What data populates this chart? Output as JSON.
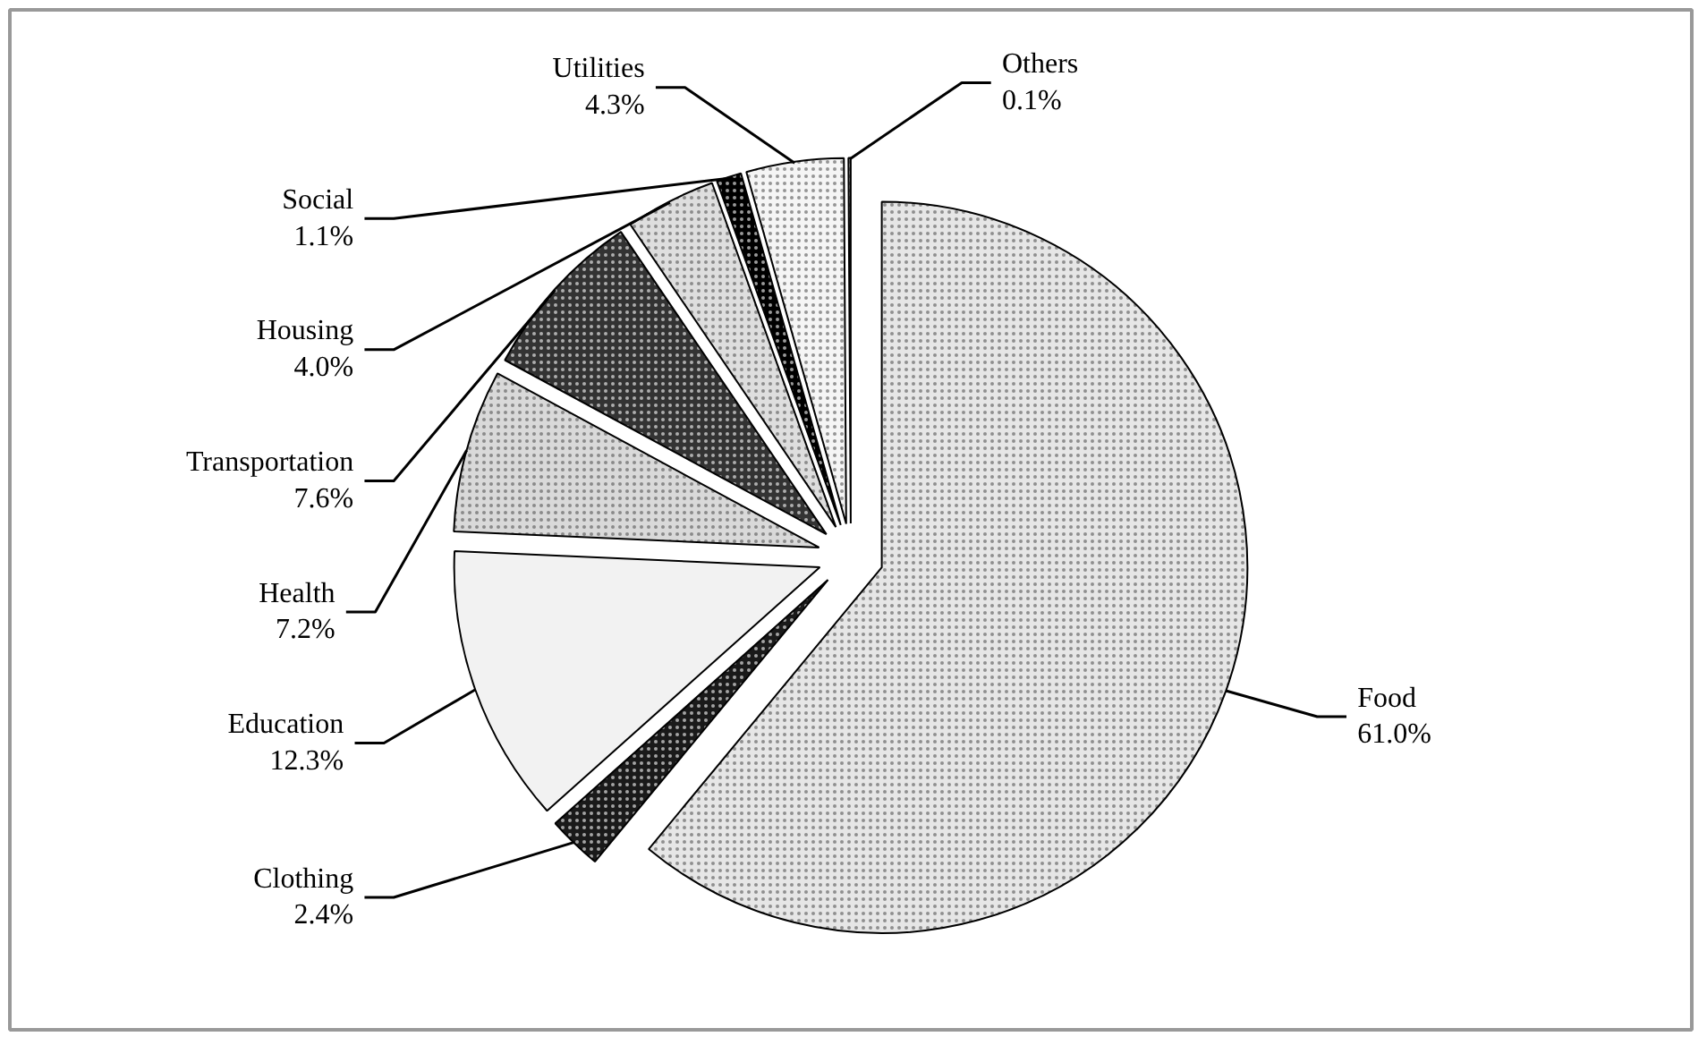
{
  "chart_data": {
    "type": "pie",
    "categories": [
      "Food",
      "Clothing",
      "Education",
      "Health",
      "Transportation",
      "Housing",
      "Social",
      "Utilities",
      "Others"
    ],
    "values": [
      61.0,
      2.4,
      12.3,
      7.2,
      7.6,
      4.0,
      1.1,
      4.3,
      0.1
    ],
    "value_labels": [
      "61.0%",
      "2.4%",
      "12.3%",
      "7.2%",
      "7.6%",
      "4.0%",
      "1.1%",
      "4.3%",
      "0.1%"
    ],
    "colors": [
      "#e6e6e6",
      "#1a1a1a",
      "#f2f2f2",
      "#d9d9d9",
      "#333333",
      "#dedede",
      "#000000",
      "#f5f5f5",
      "#d0d0d0"
    ]
  }
}
